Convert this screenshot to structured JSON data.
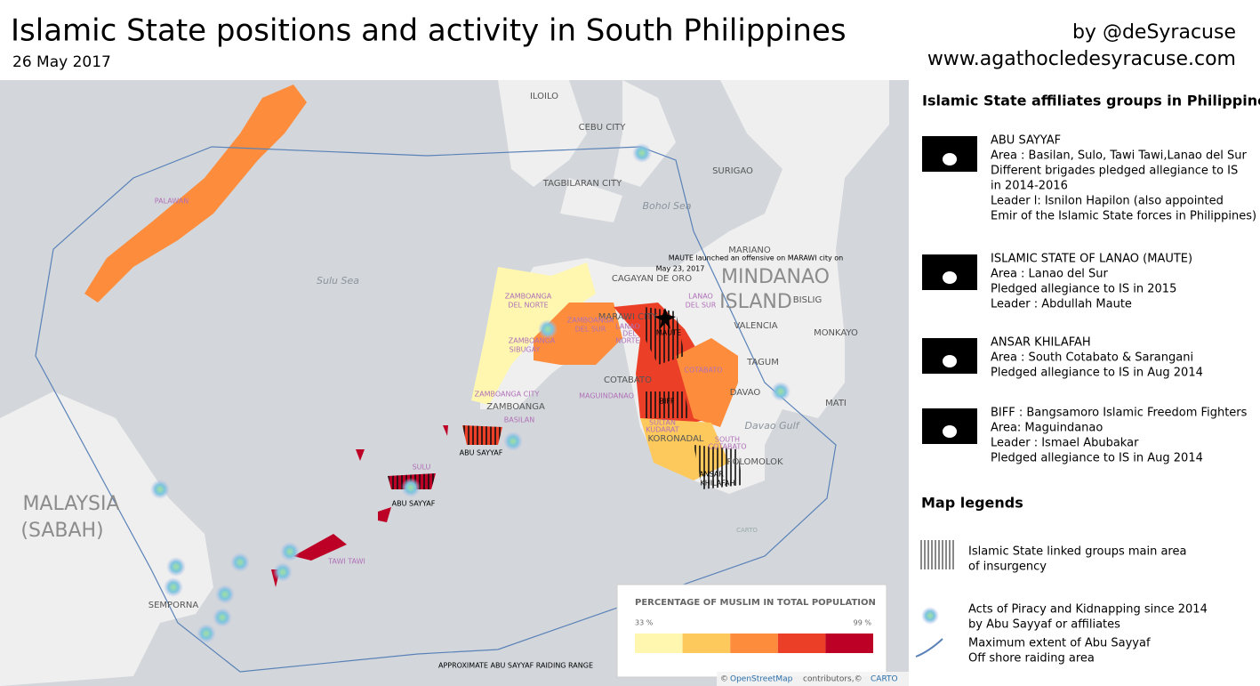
{
  "header": {
    "title": "Islamic State positions and activity in South Philippines",
    "date": "26 May 2017",
    "author": "by @deSyracuse",
    "website": "www.agathocledesyracuse.com"
  },
  "map": {
    "places": [
      "ILOILO",
      "CEBU CITY",
      "SURIGAO",
      "TAGBILARAN CITY",
      "MARIANO",
      "CAGAYAN DE ORO",
      "BISLIG",
      "VALENCIA",
      "MONKAYO",
      "TAGUM",
      "DAVAO",
      "MATI",
      "COTABATO",
      "KORONADAL",
      "POLOMOLOK",
      "ZAMBOANGA",
      "SEMPORNA",
      "MARAWI CITY"
    ],
    "seas": [
      "Bohol Sea",
      "Sulu Sea",
      "Davao Gulf"
    ],
    "regions": [
      "MINDANAO",
      "ISLAND",
      "MALAYSIA",
      "(SABAH)"
    ],
    "provinces": [
      "PALAWAN",
      "ZAMBOANGA",
      "DEL NORTE",
      "ZAMBOANGA",
      "DEL SUR",
      "ZAMBOANGA",
      "SIBUGAY",
      "ZAMBOANGA CITY",
      "LANAO",
      "DEL SUR",
      "LANAO",
      "DEL",
      "NORTE",
      "COTABATO",
      "MAGUINDANAO",
      "SULTAN",
      "KUDARAT",
      "SOUTH",
      "COTABATO",
      "BASILAN",
      "SULU",
      "TAWI TAWI"
    ],
    "annotations": [
      "MAUTE launched an offensive on MARAWI city on",
      "May 23, 2017",
      "MAUTE",
      "BIFF",
      "ABU SAYYAF",
      "ABU SAYYAF",
      "ANSAR",
      "KHILAFAH",
      "APPROXIMATE ABU SAYYAF RAIDING RANGE"
    ],
    "watermark": "CARTO",
    "legend": {
      "title": "PERCENTAGE OF MUSLIM IN TOTAL POPULATION",
      "min": "33 %",
      "max": "99 %",
      "colors": [
        "#fff7b0",
        "#fec95c",
        "#fd8d3c",
        "#ec3f27",
        "#bd0026"
      ]
    },
    "attribution": [
      "©",
      "OpenStreetMap",
      "contributors,©",
      "CARTO"
    ]
  },
  "panel": {
    "title": "Islamic State affiliates groups in Philippines",
    "groups": [
      {
        "lines": [
          "ABU SAYYAF",
          "Area : Basilan, Sulo, Tawi Tawi,Lanao del Sur",
          "Different brigades pledged allegiance to IS",
          "in 2014-2016",
          "Leader l: Isnilon Hapilon (also appointed",
          "Emir of the Islamic State forces in Philippines)"
        ]
      },
      {
        "lines": [
          "ISLAMIC STATE OF LANAO (MAUTE)",
          "Area : Lanao del Sur",
          "Pledged allegiance to IS in 2015",
          "Leader : Abdullah Maute"
        ]
      },
      {
        "lines": [
          "ANSAR KHILAFAH",
          "Area : South Cotabato & Sarangani",
          "Pledged allegiance to IS in  Aug 2014"
        ]
      },
      {
        "lines": [
          "BIFF : Bangsamoro Islamic Freedom Fighters",
          "Area: Maguindanao",
          "Leader : Ismael Abubakar",
          "Pledged allegiance to IS in  Aug 2014"
        ]
      }
    ],
    "legend_title": "Map legends",
    "legend_items": [
      [
        "Islamic State linked groups main area",
        "of insurgency"
      ],
      [
        "Acts of Piracy and Kidnapping since 2014",
        "by Abu Sayyaf or affiliates"
      ],
      [
        "Maximum extent of Abu Sayyaf",
        "Off shore raiding area"
      ]
    ]
  }
}
